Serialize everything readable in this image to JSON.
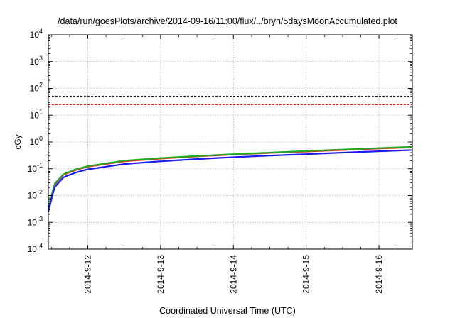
{
  "chart_data": {
    "type": "line",
    "title": "/data/run/goesPlots/archive/2014-09-16/11:00/flux/../bryn/5daysMoonAccumulated.plot",
    "xlabel": "Coordinated Universal Time (UTC)",
    "ylabel": "cGy",
    "x_scale": "time",
    "y_scale": "log",
    "xlim": [
      "2014-09-11T11:00",
      "2014-09-16T11:00"
    ],
    "ylim": [
      0.0001,
      10000
    ],
    "x_ticks": [
      "2014-9-12",
      "2014-9-13",
      "2014-9-14",
      "2014-9-15",
      "2014-9-16"
    ],
    "y_ticks": [
      {
        "base": "10",
        "exp": "-4"
      },
      {
        "base": "10",
        "exp": "-3"
      },
      {
        "base": "10",
        "exp": "-2"
      },
      {
        "base": "10",
        "exp": "-1"
      },
      {
        "base": "10",
        "exp": "0"
      },
      {
        "base": "10",
        "exp": "1"
      },
      {
        "base": "10",
        "exp": "2"
      },
      {
        "base": "10",
        "exp": "3"
      },
      {
        "base": "10",
        "exp": "4"
      }
    ],
    "grid": true,
    "thresholds": [
      {
        "value": 50,
        "color": "#000000",
        "style": "dashed"
      },
      {
        "value": 25,
        "color": "#ee1111",
        "style": "dashed"
      }
    ],
    "series": [
      {
        "color": "#ee2222",
        "x": [
          "2014-09-11T11:00",
          "2014-09-11T13:00",
          "2014-09-11T16:00",
          "2014-09-11T20:00",
          "2014-09-12T00:00",
          "2014-09-12T12:00",
          "2014-09-13T00:00",
          "2014-09-13T12:00",
          "2014-09-14T00:00",
          "2014-09-14T12:00",
          "2014-09-15T00:00",
          "2014-09-15T12:00",
          "2014-09-16T00:00",
          "2014-09-16T11:00"
        ],
        "y": [
          0.003,
          0.025,
          0.06,
          0.09,
          0.12,
          0.19,
          0.24,
          0.29,
          0.34,
          0.39,
          0.44,
          0.5,
          0.57,
          0.63
        ]
      },
      {
        "color": "#22aa22",
        "x": [
          "2014-09-11T11:00",
          "2014-09-11T13:00",
          "2014-09-11T16:00",
          "2014-09-11T20:00",
          "2014-09-12T00:00",
          "2014-09-12T12:00",
          "2014-09-13T00:00",
          "2014-09-13T12:00",
          "2014-09-14T00:00",
          "2014-09-14T12:00",
          "2014-09-15T00:00",
          "2014-09-15T12:00",
          "2014-09-16T00:00",
          "2014-09-16T11:00"
        ],
        "y": [
          0.0032,
          0.027,
          0.063,
          0.095,
          0.125,
          0.2,
          0.25,
          0.3,
          0.35,
          0.4,
          0.46,
          0.52,
          0.59,
          0.66
        ]
      },
      {
        "color": "#1a1aee",
        "x": [
          "2014-09-11T11:00",
          "2014-09-11T13:00",
          "2014-09-11T16:00",
          "2014-09-11T20:00",
          "2014-09-12T00:00",
          "2014-09-12T12:00",
          "2014-09-13T00:00",
          "2014-09-13T12:00",
          "2014-09-14T00:00",
          "2014-09-14T12:00",
          "2014-09-15T00:00",
          "2014-09-15T12:00",
          "2014-09-16T00:00",
          "2014-09-16T11:00"
        ],
        "y": [
          0.0025,
          0.02,
          0.048,
          0.072,
          0.095,
          0.15,
          0.19,
          0.23,
          0.27,
          0.31,
          0.35,
          0.4,
          0.45,
          0.5
        ]
      }
    ]
  }
}
